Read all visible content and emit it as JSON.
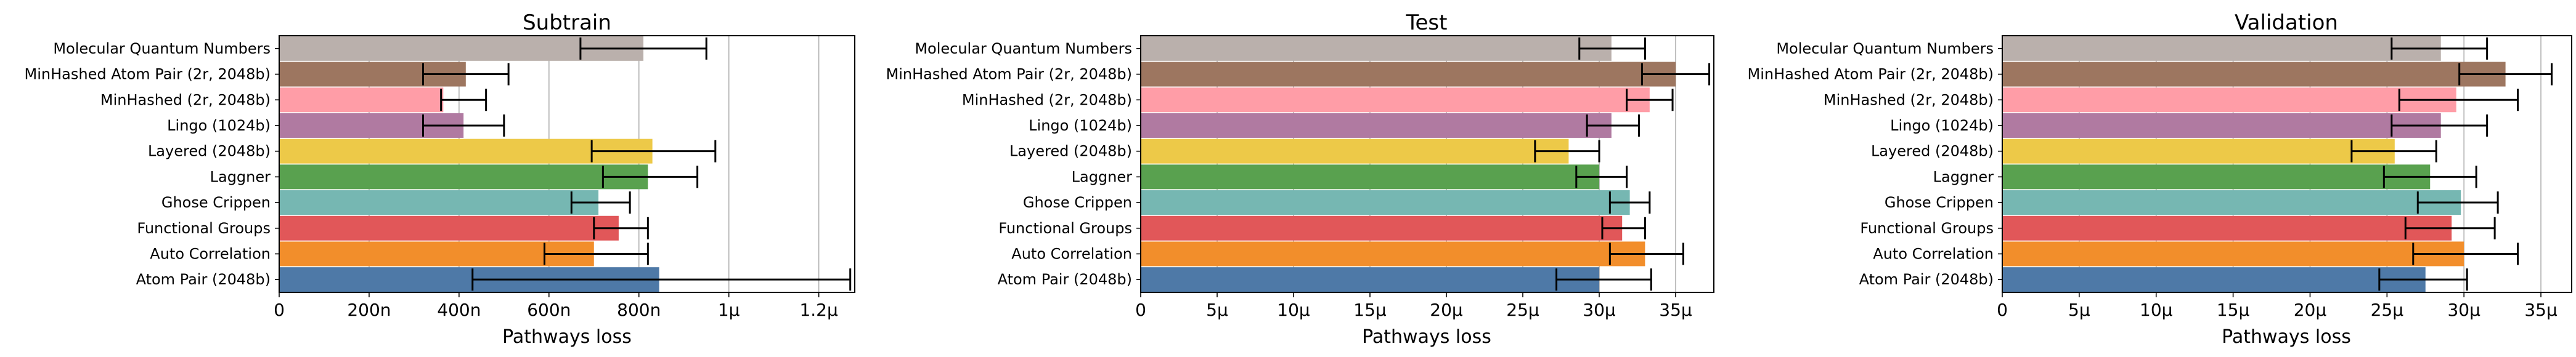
{
  "chart_data": [
    {
      "type": "bar",
      "orientation": "horizontal",
      "title": "Subtrain",
      "xlabel": "Pathways loss",
      "xlim": [
        0,
        1.28e-06
      ],
      "xticks": [
        0,
        2e-07,
        4e-07,
        6e-07,
        8e-07,
        1e-06,
        1.2e-06
      ],
      "xticklabels": [
        "0",
        "200n",
        "400n",
        "600n",
        "800n",
        "1µ",
        "1.2µ"
      ],
      "grid": "x",
      "categories": [
        "Molecular Quantum Numbers",
        "MinHashed Atom Pair (2r, 2048b)",
        "MinHashed (2r, 2048b)",
        "Lingo (1024b)",
        "Layered (2048b)",
        "Laggner",
        "Ghose Crippen",
        "Functional Groups",
        "Auto Correlation",
        "Atom Pair (2048b)"
      ],
      "values": [
        8.1e-07,
        4.15e-07,
        3.65e-07,
        4.1e-07,
        8.3e-07,
        8.2e-07,
        7.1e-07,
        7.55e-07,
        7e-07,
        8.45e-07
      ],
      "error_low": [
        6.7e-07,
        3.2e-07,
        3.6e-07,
        3.2e-07,
        6.95e-07,
        7.2e-07,
        6.5e-07,
        7e-07,
        5.9e-07,
        4.3e-07
      ],
      "error_high": [
        9.5e-07,
        5.1e-07,
        4.6e-07,
        5e-07,
        9.7e-07,
        9.3e-07,
        7.8e-07,
        8.2e-07,
        8.2e-07,
        1.27e-06
      ],
      "colors": [
        "#bab0ac",
        "#9d7660",
        "#ff9da7",
        "#b07aa1",
        "#edc948",
        "#59a14f",
        "#76b7b2",
        "#e15759",
        "#f28e2b",
        "#4e79a7"
      ]
    },
    {
      "type": "bar",
      "orientation": "horizontal",
      "title": "Test",
      "xlabel": "Pathways loss",
      "xlim": [
        0,
        3.75e-05
      ],
      "xticks": [
        0,
        5e-06,
        1e-05,
        1.5e-05,
        2e-05,
        2.5e-05,
        3e-05,
        3.5e-05
      ],
      "xticklabels": [
        "0",
        "5µ",
        "10µ",
        "15µ",
        "20µ",
        "25µ",
        "30µ",
        "35µ"
      ],
      "grid": "x",
      "categories": [
        "Molecular Quantum Numbers",
        "MinHashed Atom Pair (2r, 2048b)",
        "MinHashed (2r, 2048b)",
        "Lingo (1024b)",
        "Layered (2048b)",
        "Laggner",
        "Ghose Crippen",
        "Functional Groups",
        "Auto Correlation",
        "Atom Pair (2048b)"
      ],
      "values": [
        3.08e-05,
        3.5e-05,
        3.33e-05,
        3.08e-05,
        2.8e-05,
        3e-05,
        3.2e-05,
        3.15e-05,
        3.3e-05,
        3e-05
      ],
      "error_low": [
        2.87e-05,
        3.28e-05,
        3.18e-05,
        2.92e-05,
        2.58e-05,
        2.85e-05,
        3.07e-05,
        3.02e-05,
        3.07e-05,
        2.72e-05
      ],
      "error_high": [
        3.3e-05,
        3.72e-05,
        3.48e-05,
        3.26e-05,
        3e-05,
        3.18e-05,
        3.33e-05,
        3.3e-05,
        3.55e-05,
        3.34e-05
      ],
      "colors": [
        "#bab0ac",
        "#9d7660",
        "#ff9da7",
        "#b07aa1",
        "#edc948",
        "#59a14f",
        "#76b7b2",
        "#e15759",
        "#f28e2b",
        "#4e79a7"
      ]
    },
    {
      "type": "bar",
      "orientation": "horizontal",
      "title": "Validation",
      "xlabel": "Pathways loss",
      "xlim": [
        0,
        3.7e-05
      ],
      "xticks": [
        0,
        5e-06,
        1e-05,
        1.5e-05,
        2e-05,
        2.5e-05,
        3e-05,
        3.5e-05
      ],
      "xticklabels": [
        "0",
        "5µ",
        "10µ",
        "15µ",
        "20µ",
        "25µ",
        "30µ",
        "35µ"
      ],
      "grid": "x",
      "categories": [
        "Molecular Quantum Numbers",
        "MinHashed Atom Pair (2r, 2048b)",
        "MinHashed (2r, 2048b)",
        "Lingo (1024b)",
        "Layered (2048b)",
        "Laggner",
        "Ghose Crippen",
        "Functional Groups",
        "Auto Correlation",
        "Atom Pair (2048b)"
      ],
      "values": [
        2.85e-05,
        3.27e-05,
        2.95e-05,
        2.85e-05,
        2.55e-05,
        2.78e-05,
        2.98e-05,
        2.92e-05,
        3e-05,
        2.75e-05
      ],
      "error_low": [
        2.53e-05,
        2.97e-05,
        2.58e-05,
        2.53e-05,
        2.27e-05,
        2.48e-05,
        2.7e-05,
        2.62e-05,
        2.67e-05,
        2.45e-05
      ],
      "error_high": [
        3.15e-05,
        3.57e-05,
        3.35e-05,
        3.15e-05,
        2.82e-05,
        3.08e-05,
        3.22e-05,
        3.2e-05,
        3.35e-05,
        3.02e-05
      ],
      "colors": [
        "#bab0ac",
        "#9d7660",
        "#ff9da7",
        "#b07aa1",
        "#edc948",
        "#59a14f",
        "#76b7b2",
        "#e15759",
        "#f28e2b",
        "#4e79a7"
      ]
    }
  ]
}
